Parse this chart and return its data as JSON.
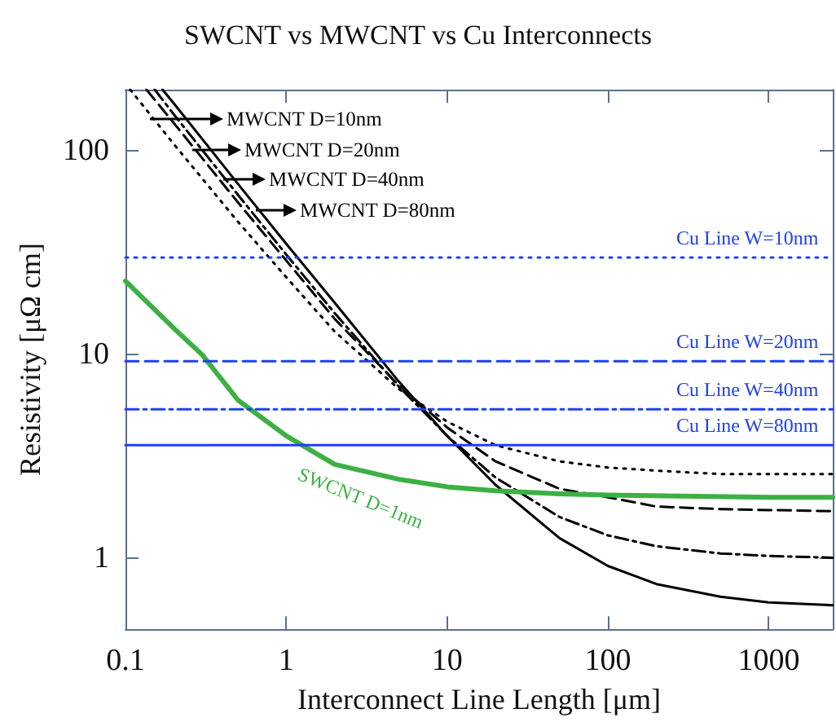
{
  "chart_data": {
    "type": "line",
    "title": "SWCNT vs MWCNT vs Cu Interconnects",
    "xlabel": "Interconnect Line Length [μm]",
    "ylabel": "Resistivity [μΩ cm]",
    "log": "xy",
    "grid": false,
    "legend": "top left",
    "marker": "none",
    "xlim": [
      0.1,
      2500
    ],
    "xticks": [
      0.1,
      1,
      10,
      100,
      1000
    ],
    "ylim": [
      0.45,
      200
    ],
    "yticks": [
      1,
      10,
      100
    ],
    "series": [
      {
        "name": "MWCNT D=10nm",
        "color": "#000000",
        "line_style": "dotted",
        "x": [
          0.107,
          0.2,
          0.5,
          1,
          2,
          5,
          10,
          20,
          50,
          100,
          200,
          500,
          1000,
          2500
        ],
        "values": [
          200,
          108,
          45,
          24,
          13,
          6.8,
          4.7,
          3.6,
          3.0,
          2.8,
          2.7,
          2.6,
          2.6,
          2.6
        ]
      },
      {
        "name": "MWCNT D=20nm",
        "color": "#000000",
        "line_style": "dashed",
        "x": [
          0.135,
          0.2,
          0.5,
          1,
          2,
          5,
          10,
          20,
          50,
          100,
          200,
          500,
          1000,
          2500
        ],
        "values": [
          200,
          137,
          56,
          29,
          15,
          7.1,
          4.4,
          3.0,
          2.2,
          2.0,
          1.8,
          1.75,
          1.73,
          1.71
        ]
      },
      {
        "name": "MWCNT D=40nm",
        "color": "#000000",
        "line_style": "dashdot",
        "x": [
          0.152,
          0.2,
          0.5,
          1,
          2,
          5,
          10,
          20,
          50,
          100,
          200,
          500,
          1000,
          2500
        ],
        "values": [
          200,
          151,
          61,
          31,
          16,
          7.0,
          4.0,
          2.5,
          1.6,
          1.3,
          1.15,
          1.06,
          1.03,
          1.01
        ]
      },
      {
        "name": "MWCNT D=80nm",
        "color": "#000000",
        "line_style": "solid",
        "x": [
          0.17,
          0.2,
          0.5,
          1,
          2,
          5,
          10,
          20,
          50,
          100,
          200,
          500,
          1000,
          2500
        ],
        "values": [
          200,
          171,
          69,
          35,
          18,
          7.4,
          4.0,
          2.3,
          1.26,
          0.92,
          0.75,
          0.65,
          0.61,
          0.59
        ]
      },
      {
        "name": "SWCNT D=1nm",
        "color": "#3cb044",
        "line_style": "solid",
        "x": [
          0.1,
          0.2,
          0.3,
          0.5,
          1,
          2,
          5,
          10,
          20,
          50,
          100,
          1000,
          2500
        ],
        "values": [
          23,
          13.5,
          10,
          6,
          4,
          2.9,
          2.45,
          2.25,
          2.15,
          2.08,
          2.05,
          2.0,
          2.0
        ]
      },
      {
        "name": "Cu Line W=10nm",
        "color": "#2040f0",
        "line_style": "dotted",
        "x": [
          0.1,
          2500
        ],
        "values": [
          30,
          30
        ]
      },
      {
        "name": "Cu Line W=20nm",
        "color": "#2040f0",
        "line_style": "dashed",
        "x": [
          0.1,
          2500
        ],
        "values": [
          9.3,
          9.3
        ]
      },
      {
        "name": "Cu Line W=40nm",
        "color": "#2040f0",
        "line_style": "dashdot",
        "x": [
          0.1,
          2500
        ],
        "values": [
          5.4,
          5.4
        ]
      },
      {
        "name": "Cu Line W=80nm",
        "color": "#2040f0",
        "line_style": "solid",
        "x": [
          0.1,
          2500
        ],
        "values": [
          3.6,
          3.6
        ]
      }
    ]
  }
}
